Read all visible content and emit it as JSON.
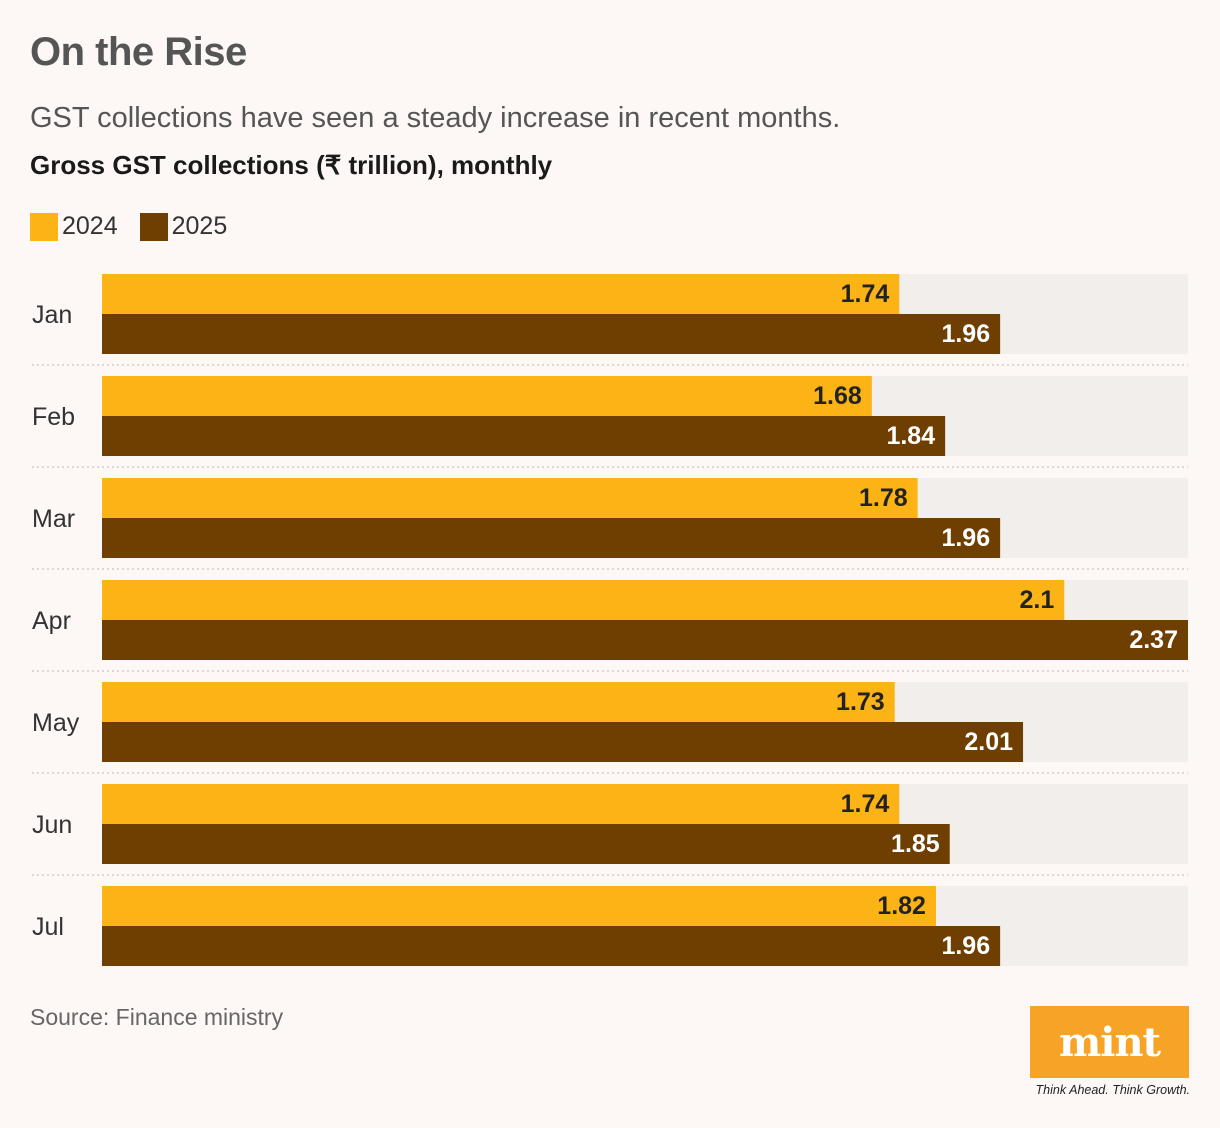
{
  "header": {
    "title": "On the Rise",
    "subtitle": "GST collections have seen a steady increase in recent months.",
    "chart_label": "Gross GST collections (₹ trillion), monthly"
  },
  "legend": [
    {
      "label": "2024",
      "color": "#fcb316"
    },
    {
      "label": "2025",
      "color": "#6e3f00"
    }
  ],
  "footer": {
    "source": "Source: Finance ministry",
    "logo_text": "mint",
    "tagline": "Think Ahead. Think Growth."
  },
  "colors": {
    "track": "#f2eeec",
    "series_2024": "#fcb316",
    "series_2025": "#6e3f00",
    "label_on_light": "#222222",
    "label_on_dark": "#ffffff",
    "logo_bg": "#f7a325"
  },
  "chart_data": {
    "type": "bar",
    "orientation": "horizontal",
    "title": "On the Rise",
    "subtitle": "GST collections have seen a steady increase in recent months.",
    "ylabel": "Gross GST collections (₹ trillion), monthly",
    "categories": [
      "Jan",
      "Feb",
      "Mar",
      "Apr",
      "May",
      "Jun",
      "Jul"
    ],
    "series": [
      {
        "name": "2024",
        "values": [
          1.74,
          1.68,
          1.78,
          2.1,
          1.73,
          1.74,
          1.82
        ]
      },
      {
        "name": "2025",
        "values": [
          1.96,
          1.84,
          1.96,
          2.37,
          2.01,
          1.85,
          1.96
        ]
      }
    ],
    "xlim": [
      0,
      2.37
    ],
    "legend_position": "top-left",
    "grid": false,
    "data_labels": true
  }
}
